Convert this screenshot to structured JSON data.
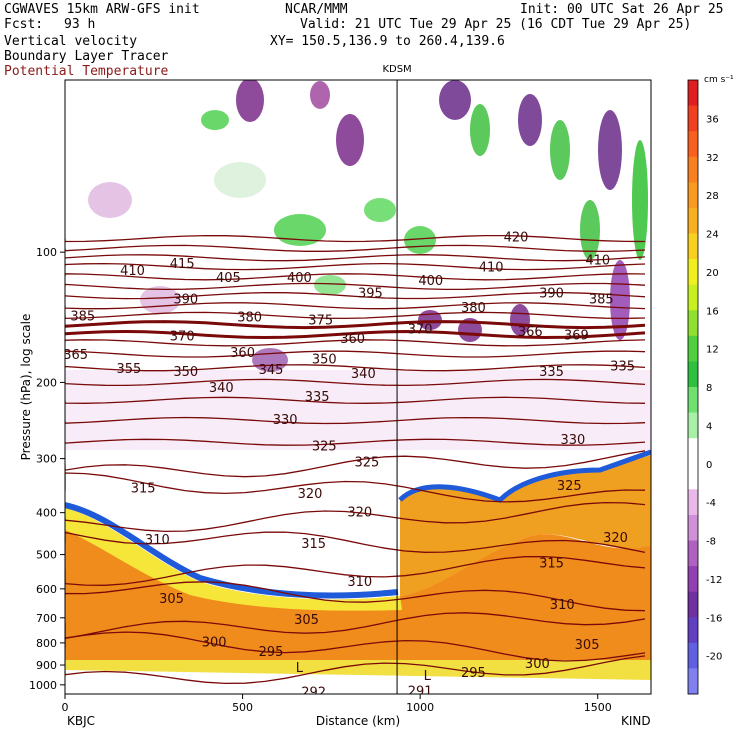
{
  "header": {
    "model_line": "CGWAVES 15km ARW-GFS init",
    "fcst_label": "Fcst:",
    "fcst_value": "93 h",
    "field1": "Vertical velocity",
    "field2": "Boundary Layer Tracer",
    "field3": "Potential Temperature",
    "center": "NCAR/MMM",
    "init": "Init: 00 UTC Sat 26 Apr 25",
    "valid": "Valid: 21 UTC Tue 29 Apr 25 (16 CDT Tue 29 Apr 25)",
    "xy": "XY= 150.5,136.9 to 260.4,139.6"
  },
  "colors": {
    "theta_line": "#7a0a0a",
    "frame": "#000000",
    "accent_title": "#8b1a1a"
  },
  "chart_data": {
    "type": "heatmap",
    "xlabel": "Distance (km)",
    "ylabel": "Pressure (hPa), log scale",
    "xlim": [
      0,
      1650
    ],
    "ylim": [
      1050,
      40
    ],
    "y_scale": "log",
    "x_ticks": [
      {
        "value": 0,
        "label": "0"
      },
      {
        "value": 500,
        "label": "500"
      },
      {
        "value": 1000,
        "label": "1000"
      },
      {
        "value": 1500,
        "label": "1500"
      }
    ],
    "y_ticks": [
      {
        "value": 100,
        "label": "100"
      },
      {
        "value": 200,
        "label": "200"
      },
      {
        "value": 300,
        "label": "300"
      },
      {
        "value": 400,
        "label": "400"
      },
      {
        "value": 500,
        "label": "500"
      },
      {
        "value": 600,
        "label": "600"
      },
      {
        "value": 700,
        "label": "700"
      },
      {
        "value": 800,
        "label": "800"
      },
      {
        "value": 900,
        "label": "900"
      },
      {
        "value": 1000,
        "label": "1000"
      }
    ],
    "station_left": "KBJC",
    "station_right": "KIND",
    "station_mid": {
      "label": "KDSM",
      "x": 935
    },
    "colorbar": {
      "unit": "cm s⁻¹",
      "ticks": [
        36,
        32,
        28,
        24,
        20,
        16,
        12,
        8,
        4,
        0,
        -4,
        -8,
        -12,
        -16,
        -20
      ],
      "colors": [
        "#e02020",
        "#f04020",
        "#f86020",
        "#f88020",
        "#f89a20",
        "#f8b020",
        "#f8d020",
        "#f0f020",
        "#c8f020",
        "#90e030",
        "#50d040",
        "#30c040",
        "#70e070",
        "#a8f0a8",
        "#ffffff",
        "#ffffff",
        "#e8b8e8",
        "#d090d8",
        "#b060c0",
        "#9040b0",
        "#7030a0",
        "#6040c0",
        "#6060e0",
        "#8080f0"
      ]
    },
    "theta_labels": [
      {
        "text": "420",
        "x": 1270,
        "p": 92
      },
      {
        "text": "410",
        "x": 190,
        "p": 110
      },
      {
        "text": "415",
        "x": 330,
        "p": 106
      },
      {
        "text": "405",
        "x": 460,
        "p": 114
      },
      {
        "text": "400",
        "x": 660,
        "p": 114
      },
      {
        "text": "400",
        "x": 1030,
        "p": 116
      },
      {
        "text": "410",
        "x": 1200,
        "p": 108
      },
      {
        "text": "410",
        "x": 1500,
        "p": 104
      },
      {
        "text": "395",
        "x": 860,
        "p": 124
      },
      {
        "text": "390",
        "x": 340,
        "p": 128
      },
      {
        "text": "390",
        "x": 1370,
        "p": 124
      },
      {
        "text": "385",
        "x": 50,
        "p": 140
      },
      {
        "text": "385",
        "x": 1510,
        "p": 128
      },
      {
        "text": "380",
        "x": 520,
        "p": 141
      },
      {
        "text": "380",
        "x": 1150,
        "p": 134
      },
      {
        "text": "375",
        "x": 720,
        "p": 143
      },
      {
        "text": "370",
        "x": 330,
        "p": 156
      },
      {
        "text": "370",
        "x": 1000,
        "p": 150
      },
      {
        "text": "366",
        "x": 1310,
        "p": 152
      },
      {
        "text": "369",
        "x": 1440,
        "p": 155
      },
      {
        "text": "365",
        "x": 30,
        "p": 172
      },
      {
        "text": "360",
        "x": 500,
        "p": 170
      },
      {
        "text": "360",
        "x": 810,
        "p": 158
      },
      {
        "text": "355",
        "x": 180,
        "p": 185
      },
      {
        "text": "350",
        "x": 340,
        "p": 188
      },
      {
        "text": "350",
        "x": 730,
        "p": 176
      },
      {
        "text": "345",
        "x": 580,
        "p": 186
      },
      {
        "text": "340",
        "x": 440,
        "p": 205
      },
      {
        "text": "340",
        "x": 840,
        "p": 190
      },
      {
        "text": "335",
        "x": 710,
        "p": 215
      },
      {
        "text": "335",
        "x": 1370,
        "p": 188
      },
      {
        "text": "335",
        "x": 1570,
        "p": 183
      },
      {
        "text": "330",
        "x": 620,
        "p": 243
      },
      {
        "text": "330",
        "x": 1430,
        "p": 270
      },
      {
        "text": "325",
        "x": 730,
        "p": 280
      },
      {
        "text": "325",
        "x": 850,
        "p": 305
      },
      {
        "text": "325",
        "x": 1420,
        "p": 345
      },
      {
        "text": "320",
        "x": 690,
        "p": 360
      },
      {
        "text": "320",
        "x": 830,
        "p": 398
      },
      {
        "text": "320",
        "x": 1550,
        "p": 455
      },
      {
        "text": "315",
        "x": 220,
        "p": 350
      },
      {
        "text": "315",
        "x": 700,
        "p": 470
      },
      {
        "text": "315",
        "x": 1370,
        "p": 522
      },
      {
        "text": "310",
        "x": 260,
        "p": 460
      },
      {
        "text": "310",
        "x": 830,
        "p": 575
      },
      {
        "text": "310",
        "x": 1400,
        "p": 650
      },
      {
        "text": "305",
        "x": 300,
        "p": 630
      },
      {
        "text": "305",
        "x": 680,
        "p": 705
      },
      {
        "text": "305",
        "x": 1470,
        "p": 805
      },
      {
        "text": "300",
        "x": 420,
        "p": 795
      },
      {
        "text": "300",
        "x": 1330,
        "p": 890
      },
      {
        "text": "295",
        "x": 580,
        "p": 835
      },
      {
        "text": "295",
        "x": 1150,
        "p": 935
      },
      {
        "text": "292",
        "x": 700,
        "p": 1035
      },
      {
        "text": "291",
        "x": 1000,
        "p": 1030
      },
      {
        "text": "L",
        "x": 660,
        "p": 910
      },
      {
        "text": "L",
        "x": 1020,
        "p": 950
      }
    ]
  }
}
